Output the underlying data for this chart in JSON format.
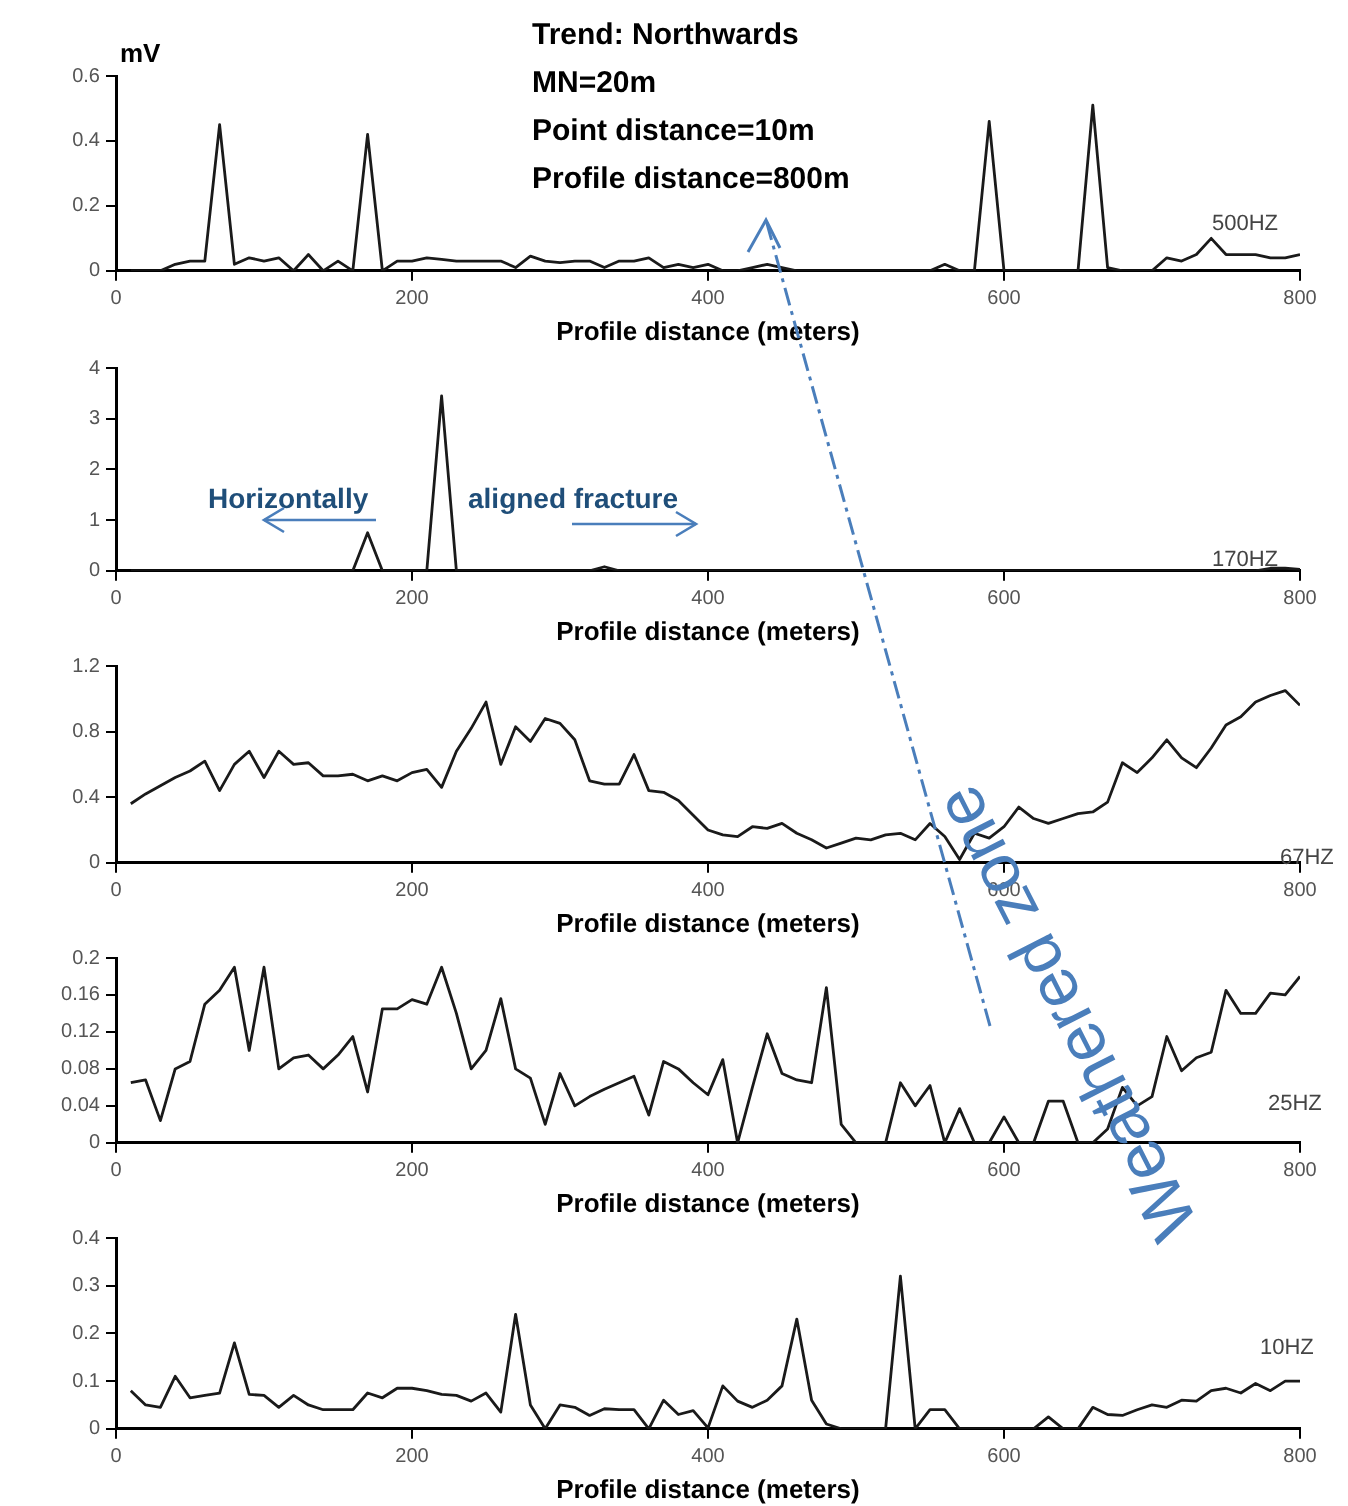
{
  "chart_data": [
    {
      "type": "line",
      "ylabel": "mV",
      "xlabel": "Profile distance (meters)",
      "annotations": [
        "Trend: Northwards",
        "MN=20m",
        "Point distance=10m",
        "Profile distance=800m",
        "500HZ"
      ],
      "x": [
        10,
        20,
        30,
        40,
        50,
        60,
        70,
        80,
        90,
        100,
        110,
        120,
        130,
        140,
        150,
        160,
        170,
        180,
        190,
        200,
        210,
        220,
        230,
        240,
        250,
        260,
        270,
        280,
        290,
        300,
        310,
        320,
        330,
        340,
        350,
        360,
        370,
        380,
        390,
        400,
        410,
        420,
        430,
        440,
        450,
        460,
        470,
        480,
        490,
        500,
        510,
        520,
        530,
        540,
        550,
        560,
        570,
        580,
        590,
        600,
        610,
        620,
        630,
        640,
        650,
        660,
        670,
        680,
        690,
        700,
        710,
        720,
        730,
        740,
        750,
        760,
        770,
        780,
        790,
        800
      ],
      "xlim": [
        0,
        800
      ],
      "xticks": [
        0,
        200,
        400,
        600,
        800
      ],
      "ylim": [
        0,
        0.6
      ],
      "yticks": [
        0,
        0.2,
        0.4,
        0.6
      ],
      "legend": false,
      "grid": false,
      "marker": "none",
      "series": [
        {
          "color": "#1a1a1a",
          "values": [
            0,
            0,
            0,
            0.02,
            0.03,
            0.03,
            0.45,
            0.02,
            0.04,
            0.03,
            0.04,
            0,
            0.05,
            0,
            0.03,
            0,
            0.42,
            0,
            0.03,
            0.03,
            0.04,
            0.035,
            0.03,
            0.03,
            0.03,
            0.03,
            0.01,
            0.045,
            0.03,
            0.025,
            0.03,
            0.03,
            0.01,
            0.03,
            0.03,
            0.04,
            0.01,
            0.02,
            0.01,
            0.02,
            0,
            0,
            0.01,
            0.02,
            0.01,
            0,
            0,
            0,
            0,
            0,
            0,
            0,
            0,
            0,
            0,
            0.02,
            0,
            0,
            0.46,
            0,
            0,
            0,
            0,
            0,
            0,
            0.51,
            0.01,
            0,
            0,
            0,
            0.04,
            0.03,
            0.05,
            0.1,
            0.05,
            0.05,
            0.05,
            0.04,
            0.04,
            0.05
          ]
        }
      ]
    },
    {
      "type": "line",
      "xlabel": "Profile distance (meters)",
      "annotations": [
        "Horizontally",
        "aligned fracture",
        "170HZ"
      ],
      "x": [
        10,
        20,
        30,
        40,
        50,
        60,
        70,
        80,
        90,
        100,
        110,
        120,
        130,
        140,
        150,
        160,
        170,
        180,
        190,
        200,
        210,
        220,
        230,
        240,
        250,
        260,
        270,
        280,
        290,
        300,
        310,
        320,
        330,
        340,
        350,
        360,
        370,
        380,
        390,
        400,
        410,
        420,
        430,
        440,
        450,
        460,
        470,
        480,
        490,
        500,
        510,
        520,
        530,
        540,
        550,
        560,
        570,
        580,
        590,
        600,
        610,
        620,
        630,
        640,
        650,
        660,
        670,
        680,
        690,
        700,
        710,
        720,
        730,
        740,
        750,
        760,
        770,
        780,
        790,
        800
      ],
      "xlim": [
        0,
        800
      ],
      "xticks": [
        0,
        200,
        400,
        600,
        800
      ],
      "ylim": [
        0,
        4
      ],
      "yticks": [
        0,
        1,
        2,
        3,
        4
      ],
      "legend": false,
      "grid": false,
      "marker": "none",
      "series": [
        {
          "color": "#1a1a1a",
          "values": [
            0,
            0,
            0,
            0,
            0,
            0,
            0,
            0,
            0,
            0,
            0,
            0,
            0,
            0,
            0,
            0,
            0.75,
            0,
            0,
            0,
            0,
            3.45,
            0,
            0,
            0,
            0,
            0,
            0,
            0,
            0,
            0,
            0,
            0.08,
            0,
            0,
            0,
            0,
            0,
            0,
            0,
            0,
            0,
            0,
            0,
            0,
            0,
            0,
            0,
            0,
            0,
            0,
            0,
            0,
            0,
            0,
            0,
            0,
            0,
            0,
            0,
            0,
            0,
            0,
            0,
            0,
            0,
            0,
            0,
            0,
            0,
            0,
            0,
            0,
            0,
            0,
            0,
            0,
            0.05,
            0.05,
            0.03
          ]
        }
      ]
    },
    {
      "type": "line",
      "xlabel": "Profile distance (meters)",
      "annotations": [
        "67HZ"
      ],
      "x": [
        10,
        20,
        30,
        40,
        50,
        60,
        70,
        80,
        90,
        100,
        110,
        120,
        130,
        140,
        150,
        160,
        170,
        180,
        190,
        200,
        210,
        220,
        230,
        240,
        250,
        260,
        270,
        280,
        290,
        300,
        310,
        320,
        330,
        340,
        350,
        360,
        370,
        380,
        390,
        400,
        410,
        420,
        430,
        440,
        450,
        460,
        470,
        480,
        490,
        500,
        510,
        520,
        530,
        540,
        550,
        560,
        570,
        580,
        590,
        600,
        610,
        620,
        630,
        640,
        650,
        660,
        670,
        680,
        690,
        700,
        710,
        720,
        730,
        740,
        750,
        760,
        770,
        780,
        790,
        800
      ],
      "xlim": [
        0,
        800
      ],
      "xticks": [
        0,
        200,
        400,
        600,
        800
      ],
      "ylim": [
        0,
        1.2
      ],
      "yticks": [
        0,
        0.4,
        0.8,
        1.2
      ],
      "legend": false,
      "grid": false,
      "marker": "none",
      "series": [
        {
          "color": "#1a1a1a",
          "values": [
            0.36,
            0.42,
            0.47,
            0.52,
            0.56,
            0.62,
            0.44,
            0.6,
            0.68,
            0.52,
            0.68,
            0.6,
            0.61,
            0.53,
            0.53,
            0.54,
            0.5,
            0.53,
            0.5,
            0.55,
            0.57,
            0.46,
            0.68,
            0.82,
            0.98,
            0.6,
            0.83,
            0.74,
            0.88,
            0.85,
            0.75,
            0.5,
            0.48,
            0.48,
            0.66,
            0.44,
            0.43,
            0.38,
            0.29,
            0.2,
            0.17,
            0.16,
            0.22,
            0.21,
            0.24,
            0.18,
            0.14,
            0.09,
            0.12,
            0.15,
            0.14,
            0.17,
            0.18,
            0.14,
            0.24,
            0.16,
            0.02,
            0.18,
            0.15,
            0.22,
            0.34,
            0.27,
            0.24,
            0.27,
            0.3,
            0.31,
            0.37,
            0.61,
            0.55,
            0.64,
            0.75,
            0.64,
            0.58,
            0.7,
            0.84,
            0.89,
            0.98,
            1.02,
            1.05,
            0.96
          ]
        }
      ]
    },
    {
      "type": "line",
      "xlabel": "Profile distance (meters)",
      "annotations": [
        "Weathered zone",
        "25HZ"
      ],
      "x": [
        10,
        20,
        30,
        40,
        50,
        60,
        70,
        80,
        90,
        100,
        110,
        120,
        130,
        140,
        150,
        160,
        170,
        180,
        190,
        200,
        210,
        220,
        230,
        240,
        250,
        260,
        270,
        280,
        290,
        300,
        310,
        320,
        330,
        340,
        350,
        360,
        370,
        380,
        390,
        400,
        410,
        420,
        430,
        440,
        450,
        460,
        470,
        480,
        490,
        500,
        510,
        520,
        530,
        540,
        550,
        560,
        570,
        580,
        590,
        600,
        610,
        620,
        630,
        640,
        650,
        660,
        670,
        680,
        690,
        700,
        710,
        720,
        730,
        740,
        750,
        760,
        770,
        780,
        790,
        800
      ],
      "xlim": [
        0,
        800
      ],
      "xticks": [
        0,
        200,
        400,
        600,
        800
      ],
      "ylim": [
        0,
        0.2
      ],
      "yticks": [
        0,
        0.04,
        0.08,
        0.12,
        0.16,
        0.2
      ],
      "legend": false,
      "grid": false,
      "marker": "none",
      "series": [
        {
          "color": "#1a1a1a",
          "values": [
            0.065,
            0.068,
            0.024,
            0.08,
            0.088,
            0.15,
            0.165,
            0.19,
            0.1,
            0.19,
            0.08,
            0.092,
            0.095,
            0.08,
            0.095,
            0.115,
            0.055,
            0.145,
            0.145,
            0.155,
            0.15,
            0.19,
            0.14,
            0.08,
            0.1,
            0.156,
            0.08,
            0.07,
            0.02,
            0.075,
            0.04,
            0.05,
            0.058,
            0.065,
            0.072,
            0.03,
            0.088,
            0.08,
            0.065,
            0.052,
            0.09,
            0,
            0.06,
            0.118,
            0.075,
            0.068,
            0.065,
            0.168,
            0.02,
            0,
            0,
            0,
            0.065,
            0.04,
            0.062,
            0,
            0.037,
            0,
            0,
            0.028,
            0,
            0,
            0.045,
            0.045,
            0,
            0,
            0.015,
            0.06,
            0.04,
            0.05,
            0.115,
            0.078,
            0.092,
            0.098,
            0.165,
            0.14,
            0.14,
            0.162,
            0.16,
            0.18
          ]
        }
      ]
    },
    {
      "type": "line",
      "xlabel": "Profile distance (meters)",
      "annotations": [
        "10HZ"
      ],
      "x": [
        10,
        20,
        30,
        40,
        50,
        60,
        70,
        80,
        90,
        100,
        110,
        120,
        130,
        140,
        150,
        160,
        170,
        180,
        190,
        200,
        210,
        220,
        230,
        240,
        250,
        260,
        270,
        280,
        290,
        300,
        310,
        320,
        330,
        340,
        350,
        360,
        370,
        380,
        390,
        400,
        410,
        420,
        430,
        440,
        450,
        460,
        470,
        480,
        490,
        500,
        510,
        520,
        530,
        540,
        550,
        560,
        570,
        580,
        590,
        600,
        610,
        620,
        630,
        640,
        650,
        660,
        670,
        680,
        690,
        700,
        710,
        720,
        730,
        740,
        750,
        760,
        770,
        780,
        790,
        800
      ],
      "xlim": [
        0,
        800
      ],
      "xticks": [
        0,
        200,
        400,
        600,
        800
      ],
      "ylim": [
        0,
        0.4
      ],
      "yticks": [
        0,
        0.1,
        0.2,
        0.3,
        0.4
      ],
      "legend": false,
      "grid": false,
      "marker": "none",
      "series": [
        {
          "color": "#1a1a1a",
          "values": [
            0.08,
            0.05,
            0.045,
            0.11,
            0.065,
            0.07,
            0.075,
            0.18,
            0.072,
            0.07,
            0.045,
            0.07,
            0.05,
            0.04,
            0.04,
            0.04,
            0.075,
            0.065,
            0.085,
            0.085,
            0.08,
            0.072,
            0.07,
            0.058,
            0.075,
            0.035,
            0.24,
            0.05,
            0,
            0.05,
            0.045,
            0.028,
            0.042,
            0.04,
            0.04,
            0,
            0.06,
            0.03,
            0.038,
            0.002,
            0.09,
            0.058,
            0.045,
            0.06,
            0.09,
            0.23,
            0.06,
            0.01,
            0,
            0,
            0,
            0,
            0.32,
            0,
            0.04,
            0.04,
            0,
            0,
            0,
            0,
            0,
            0,
            0.025,
            0,
            0,
            0.045,
            0.03,
            0.028,
            0.04,
            0.05,
            0.045,
            0.06,
            0.058,
            0.08,
            0.085,
            0.075,
            0.095,
            0.08,
            0.1,
            0.1
          ]
        }
      ]
    }
  ]
}
